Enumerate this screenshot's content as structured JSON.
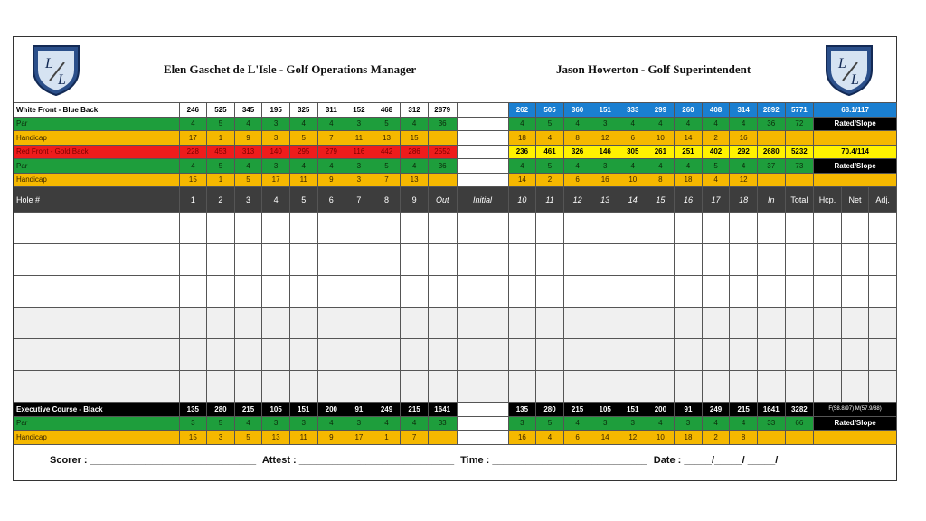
{
  "header": {
    "left_title": "Elen Gaschet de L'Isle - Golf Operations Manager",
    "right_title": "Jason Howerton - Golf Superintendent"
  },
  "rows": {
    "white_blue": {
      "label": "White Front - Blue Back",
      "front": [
        "246",
        "525",
        "345",
        "195",
        "325",
        "311",
        "152",
        "468",
        "312",
        "2879"
      ],
      "back": [
        "262",
        "505",
        "360",
        "151",
        "333",
        "299",
        "260",
        "408",
        "314",
        "2892",
        "5771"
      ],
      "rating": "68.1/117"
    },
    "par1": {
      "label": "Par",
      "front": [
        "4",
        "5",
        "4",
        "3",
        "4",
        "4",
        "3",
        "5",
        "4",
        "36"
      ],
      "back": [
        "4",
        "5",
        "4",
        "3",
        "4",
        "4",
        "4",
        "4",
        "4",
        "36",
        "72"
      ],
      "rating": "Rated/Slope"
    },
    "hcp1": {
      "label": "Handicap",
      "front": [
        "17",
        "1",
        "9",
        "3",
        "5",
        "7",
        "11",
        "13",
        "15",
        ""
      ],
      "back": [
        "18",
        "4",
        "8",
        "12",
        "6",
        "10",
        "14",
        "2",
        "16",
        "",
        ""
      ],
      "rating": ""
    },
    "red_gold": {
      "label": "Red Front - Gold Back",
      "front": [
        "228",
        "453",
        "313",
        "140",
        "295",
        "279",
        "116",
        "442",
        "286",
        "2552"
      ],
      "back": [
        "236",
        "461",
        "326",
        "146",
        "305",
        "261",
        "251",
        "402",
        "292",
        "2680",
        "5232"
      ],
      "rating": "70.4/114"
    },
    "par2": {
      "label": "Par",
      "front": [
        "4",
        "5",
        "4",
        "3",
        "4",
        "4",
        "3",
        "5",
        "4",
        "36"
      ],
      "back": [
        "4",
        "5",
        "4",
        "3",
        "4",
        "4",
        "4",
        "5",
        "4",
        "37",
        "73"
      ],
      "rating": "Rated/Slope"
    },
    "hcp2": {
      "label": "Handicap",
      "front": [
        "15",
        "1",
        "5",
        "17",
        "11",
        "9",
        "3",
        "7",
        "13",
        ""
      ],
      "back": [
        "14",
        "2",
        "6",
        "16",
        "10",
        "8",
        "18",
        "4",
        "12",
        "",
        ""
      ],
      "rating": ""
    },
    "holes": {
      "label": "Hole #",
      "front": [
        "1",
        "2",
        "3",
        "4",
        "5",
        "6",
        "7",
        "8",
        "9",
        "Out"
      ],
      "initial": "Initial",
      "back": [
        "10",
        "11",
        "12",
        "13",
        "14",
        "15",
        "16",
        "17",
        "18",
        "In",
        "Total"
      ],
      "extra": [
        "Hcp.",
        "Net",
        "Adj."
      ]
    },
    "exec": {
      "label": "Executive Course - Black",
      "front": [
        "135",
        "280",
        "215",
        "105",
        "151",
        "200",
        "91",
        "249",
        "215",
        "1641"
      ],
      "back": [
        "135",
        "280",
        "215",
        "105",
        "151",
        "200",
        "91",
        "249",
        "215",
        "1641",
        "3282"
      ],
      "rating": "F(58.8/97) M(57.9/88)"
    },
    "par3": {
      "label": "Par",
      "front": [
        "3",
        "5",
        "4",
        "3",
        "3",
        "4",
        "3",
        "4",
        "4",
        "33"
      ],
      "back": [
        "3",
        "5",
        "4",
        "3",
        "3",
        "4",
        "3",
        "4",
        "4",
        "33",
        "66"
      ],
      "rating": "Rated/Slope"
    },
    "hcp3": {
      "label": "Handicap",
      "front": [
        "15",
        "3",
        "5",
        "13",
        "11",
        "9",
        "17",
        "1",
        "7",
        ""
      ],
      "back": [
        "16",
        "4",
        "6",
        "14",
        "12",
        "10",
        "18",
        "2",
        "8",
        "",
        ""
      ],
      "rating": ""
    }
  },
  "footer": {
    "scorer": "Scorer : ______________________________",
    "attest": "Attest : ____________________________",
    "time": "Time : ____________________________",
    "date": "Date : _____/_____/ _____/"
  },
  "colors": {
    "green": "#1e9e3c",
    "orange": "#f5b800",
    "red": "#ee1c1c",
    "yellow": "#fff200",
    "blue": "#1a7fd1",
    "black": "#000000",
    "dark": "#3d3d3d"
  },
  "icons": {
    "logo": "club-shield-logo-icon"
  }
}
